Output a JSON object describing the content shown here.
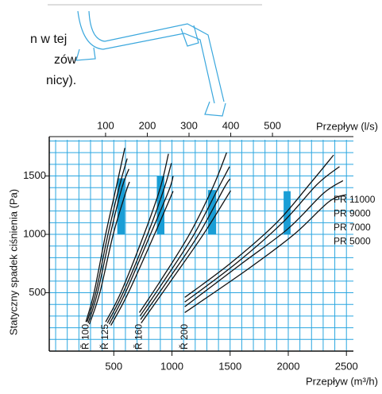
{
  "intro_text": [
    "n w tej",
    "zów",
    "nicy)."
  ],
  "chart_data": {
    "type": "line",
    "y_label": "Statyczny spadek ciśnienia (Pa)",
    "x_label": "Przepływ (m³/h)",
    "x2_label": "Przepływ (l/s)",
    "xlim": [
      -55,
      2560
    ],
    "ylim": [
      0,
      1810
    ],
    "x2lim": [
      -35,
      694
    ],
    "xticks": [
      500,
      1000,
      1500,
      2000,
      2500
    ],
    "yticks": [
      500,
      1000,
      1500
    ],
    "x2ticks": [
      100,
      200,
      300,
      400,
      500
    ],
    "xminor": [
      0,
      100,
      200,
      300,
      400,
      500,
      600,
      700,
      800,
      900,
      1000,
      1100,
      1200,
      1300,
      1400,
      1500,
      1600,
      1700,
      1800,
      1900,
      2000,
      2100,
      2200,
      2300,
      2400,
      2500
    ],
    "yminor": [
      100,
      200,
      300,
      400,
      500,
      600,
      700,
      800,
      900,
      1000,
      1100,
      1200,
      1300,
      1400,
      1500,
      1600,
      1700,
      1800
    ],
    "grid_color": "#2aa6e0",
    "line_color": "#111111",
    "range_color": "#1a9ed6",
    "curve_labels": [
      "PR 11000",
      "PR 9000",
      "PR 7000",
      "PR 5000"
    ],
    "groups": [
      {
        "label": "Ř 100",
        "range": {
          "x": [
            530,
            595
          ],
          "y": [
            1000,
            1480
          ]
        },
        "curves": [
          {
            "x": [
              260,
              330,
              430,
              520,
              595
            ],
            "values": [
              250,
              500,
              1000,
              1400,
              1740
            ]
          },
          {
            "x": [
              270,
              345,
              450,
              545,
              615
            ],
            "values": [
              250,
              500,
              1000,
              1400,
              1650
            ]
          },
          {
            "x": [
              280,
              360,
              470,
              570,
              630
            ],
            "values": [
              240,
              500,
              1000,
              1400,
              1560
            ]
          },
          {
            "x": [
              290,
              380,
              495,
              600,
              635
            ],
            "values": [
              230,
              500,
              1000,
              1350,
              1450
            ]
          }
        ]
      },
      {
        "label": "Ř 125",
        "range": {
          "x": [
            870,
            935
          ],
          "y": [
            1000,
            1500
          ]
        },
        "curves": [
          {
            "x": [
              430,
              560,
              760,
              900,
              970
            ],
            "values": [
              250,
              500,
              1000,
              1400,
              1690
            ]
          },
          {
            "x": [
              445,
              580,
              790,
              935,
              995
            ],
            "values": [
              240,
              500,
              1000,
              1400,
              1610
            ]
          },
          {
            "x": [
              460,
              600,
              815,
              975,
              1010
            ],
            "values": [
              230,
              500,
              1000,
              1380,
              1500
            ]
          },
          {
            "x": [
              475,
              625,
              850,
              1010
            ],
            "values": [
              220,
              500,
              1000,
              1370
            ]
          }
        ]
      },
      {
        "label": "Ř 160",
        "range": {
          "x": [
            1310,
            1380
          ],
          "y": [
            1000,
            1380
          ]
        },
        "curves": [
          {
            "x": [
              720,
              900,
              1150,
              1350,
              1470
            ],
            "values": [
              330,
              600,
              1000,
              1400,
              1700
            ]
          },
          {
            "x": [
              725,
              930,
              1190,
              1400,
              1495
            ],
            "values": [
              300,
              600,
              1000,
              1400,
              1580
            ]
          },
          {
            "x": [
              730,
              960,
              1230,
              1450,
              1500
            ],
            "values": [
              270,
              600,
              1000,
              1400,
              1475
            ]
          },
          {
            "x": [
              735,
              990,
              1270,
              1505
            ],
            "values": [
              240,
              600,
              1000,
              1375
            ]
          }
        ]
      },
      {
        "label": "Ř 200",
        "range": {
          "x": [
            1960,
            2020
          ],
          "y": [
            1000,
            1370
          ]
        },
        "curves": [
          {
            "x": [
              1110,
              1500,
              1900,
              2200,
              2390
            ],
            "values": [
              460,
              750,
              1100,
              1450,
              1680
            ]
          },
          {
            "x": [
              1110,
              1550,
              1950,
              2250,
              2440
            ],
            "values": [
              420,
              750,
              1100,
              1430,
              1580
            ]
          },
          {
            "x": [
              1110,
              1600,
              2000,
              2300,
              2470
            ],
            "values": [
              380,
              750,
              1050,
              1350,
              1460
            ]
          },
          {
            "x": [
              1110,
              1650,
              2050,
              2350,
              2500
            ],
            "values": [
              330,
              700,
              1000,
              1280,
              1340
            ]
          }
        ]
      }
    ]
  }
}
